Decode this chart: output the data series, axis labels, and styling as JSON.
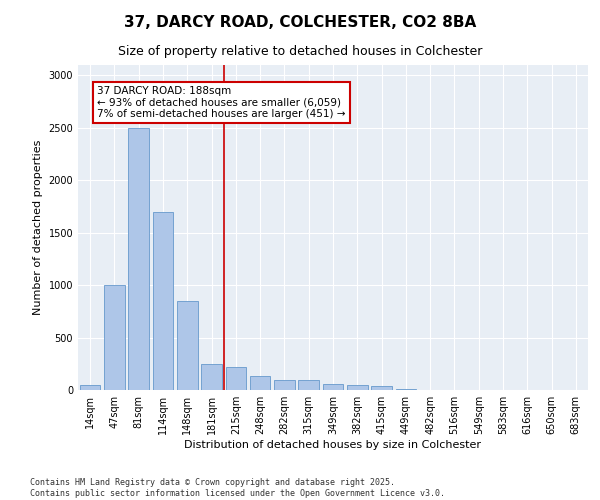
{
  "title_line1": "37, DARCY ROAD, COLCHESTER, CO2 8BA",
  "title_line2": "Size of property relative to detached houses in Colchester",
  "xlabel": "Distribution of detached houses by size in Colchester",
  "ylabel": "Number of detached properties",
  "categories": [
    "14sqm",
    "47sqm",
    "81sqm",
    "114sqm",
    "148sqm",
    "181sqm",
    "215sqm",
    "248sqm",
    "282sqm",
    "315sqm",
    "349sqm",
    "382sqm",
    "415sqm",
    "449sqm",
    "482sqm",
    "516sqm",
    "549sqm",
    "583sqm",
    "616sqm",
    "650sqm",
    "683sqm"
  ],
  "values": [
    50,
    1000,
    2500,
    1700,
    850,
    250,
    220,
    130,
    100,
    100,
    60,
    50,
    40,
    5,
    0,
    0,
    0,
    0,
    0,
    0,
    0
  ],
  "bar_color": "#aec6e8",
  "bar_edge_color": "#6699cc",
  "vline_x": 5.5,
  "vline_color": "#cc0000",
  "annotation_text": "37 DARCY ROAD: 188sqm\n← 93% of detached houses are smaller (6,059)\n7% of semi-detached houses are larger (451) →",
  "annotation_box_color": "#ffffff",
  "annotation_box_edge_color": "#cc0000",
  "ylim": [
    0,
    3100
  ],
  "yticks": [
    0,
    500,
    1000,
    1500,
    2000,
    2500,
    3000
  ],
  "background_color": "#e8eef5",
  "footer_line1": "Contains HM Land Registry data © Crown copyright and database right 2025.",
  "footer_line2": "Contains public sector information licensed under the Open Government Licence v3.0.",
  "title_fontsize": 11,
  "subtitle_fontsize": 9,
  "tick_fontsize": 7,
  "label_fontsize": 8,
  "annotation_fontsize": 7.5
}
